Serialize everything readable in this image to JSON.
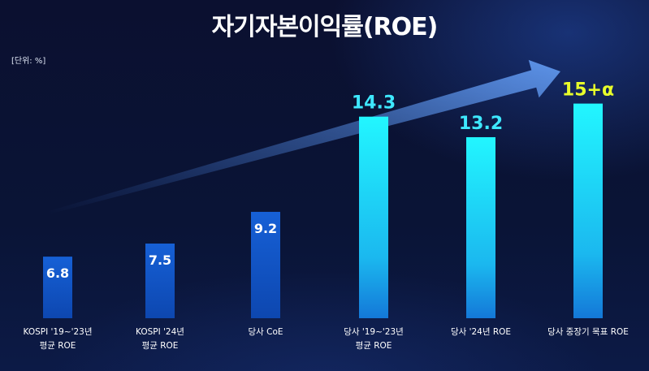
{
  "title": "자기자본이익률(ROE)",
  "unit_label": "[단위: %]",
  "colors": {
    "background": "#0a0f2a",
    "bar_dark": "#1457c8",
    "bar_bright": "#21f2ff",
    "value_text_light": "#ffffff",
    "value_text_bright": "#3ee8ff",
    "target_text": "#e8ff2a",
    "arrow": "#5a8fe0"
  },
  "chart_data": {
    "type": "bar",
    "categories": [
      [
        "KOSPI '19~'23년",
        "평균 ROE"
      ],
      [
        "KOSPI '24년",
        "평균 ROE"
      ],
      [
        "당사 CoE"
      ],
      [
        "당사 '19~'23년",
        "평균 ROE"
      ],
      [
        "당사 '24년 ROE"
      ],
      [
        "당사 중장기 목표 ROE"
      ]
    ],
    "values": [
      6.8,
      7.5,
      9.2,
      14.3,
      13.2,
      15
    ],
    "value_labels": [
      "6.8",
      "7.5",
      "9.2",
      "14.3",
      "13.2",
      "15+α"
    ],
    "bar_styles": [
      "dark",
      "dark",
      "dark",
      "bright",
      "bright",
      "bright"
    ],
    "label_positions": [
      "inside",
      "inside",
      "inside",
      "above",
      "above",
      "above"
    ],
    "ylim": [
      3.5,
      16.2
    ],
    "grid": false,
    "legend": "none",
    "trend_arrow": true
  }
}
